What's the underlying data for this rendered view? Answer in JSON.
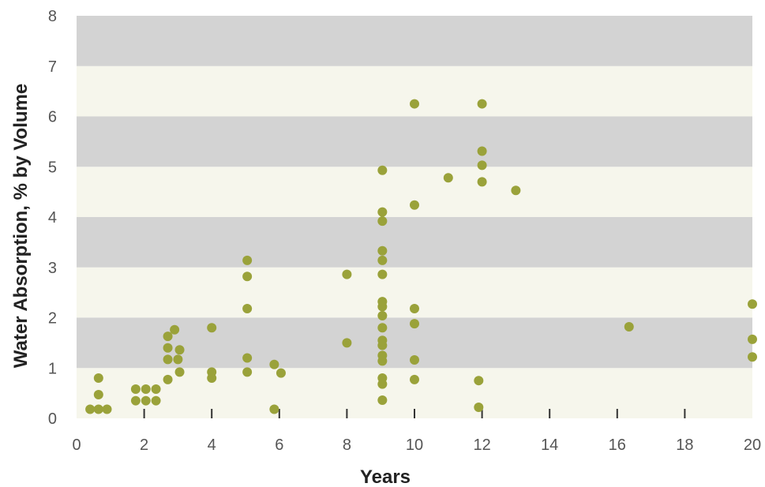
{
  "chart_data": {
    "type": "scatter",
    "xlabel": "Years",
    "ylabel": "Water  Absorption, % by Volume",
    "xlim": [
      0,
      20
    ],
    "ylim": [
      0,
      8
    ],
    "xticks": [
      0,
      2,
      4,
      6,
      8,
      10,
      12,
      14,
      16,
      18,
      20
    ],
    "yticks": [
      0,
      1,
      2,
      3,
      4,
      5,
      6,
      7,
      8
    ],
    "grid": "alternating horizontal bands",
    "legend": "none",
    "colors": {
      "point": "#9aa23a",
      "band_dark": "#d3d3d3",
      "band_light": "#f6f6ec",
      "tick": "#333333"
    },
    "points": [
      {
        "x": 0.4,
        "y": 0.18
      },
      {
        "x": 0.65,
        "y": 0.18
      },
      {
        "x": 0.9,
        "y": 0.18
      },
      {
        "x": 0.65,
        "y": 0.47
      },
      {
        "x": 0.65,
        "y": 0.8
      },
      {
        "x": 1.75,
        "y": 0.35
      },
      {
        "x": 2.05,
        "y": 0.35
      },
      {
        "x": 2.35,
        "y": 0.35
      },
      {
        "x": 1.75,
        "y": 0.58
      },
      {
        "x": 2.05,
        "y": 0.58
      },
      {
        "x": 2.35,
        "y": 0.58
      },
      {
        "x": 2.7,
        "y": 0.77
      },
      {
        "x": 2.7,
        "y": 1.17
      },
      {
        "x": 2.7,
        "y": 1.4
      },
      {
        "x": 2.7,
        "y": 1.63
      },
      {
        "x": 2.9,
        "y": 1.76
      },
      {
        "x": 3.0,
        "y": 1.17
      },
      {
        "x": 3.05,
        "y": 0.92
      },
      {
        "x": 3.05,
        "y": 1.36
      },
      {
        "x": 4.0,
        "y": 0.8
      },
      {
        "x": 4.0,
        "y": 0.92
      },
      {
        "x": 4.0,
        "y": 1.8
      },
      {
        "x": 5.05,
        "y": 0.92
      },
      {
        "x": 5.05,
        "y": 1.2
      },
      {
        "x": 5.05,
        "y": 2.18
      },
      {
        "x": 5.05,
        "y": 2.82
      },
      {
        "x": 5.05,
        "y": 3.14
      },
      {
        "x": 5.85,
        "y": 0.18
      },
      {
        "x": 5.85,
        "y": 1.07
      },
      {
        "x": 6.05,
        "y": 0.9
      },
      {
        "x": 8.0,
        "y": 1.5
      },
      {
        "x": 8.0,
        "y": 2.86
      },
      {
        "x": 9.05,
        "y": 0.36
      },
      {
        "x": 9.05,
        "y": 0.68
      },
      {
        "x": 9.05,
        "y": 0.8
      },
      {
        "x": 9.05,
        "y": 1.14
      },
      {
        "x": 9.05,
        "y": 1.25
      },
      {
        "x": 9.05,
        "y": 1.45
      },
      {
        "x": 9.05,
        "y": 1.55
      },
      {
        "x": 9.05,
        "y": 1.8
      },
      {
        "x": 9.05,
        "y": 2.04
      },
      {
        "x": 9.05,
        "y": 2.22
      },
      {
        "x": 9.05,
        "y": 2.32
      },
      {
        "x": 9.05,
        "y": 2.86
      },
      {
        "x": 9.05,
        "y": 3.14
      },
      {
        "x": 9.05,
        "y": 3.33
      },
      {
        "x": 9.05,
        "y": 3.92
      },
      {
        "x": 9.05,
        "y": 4.1
      },
      {
        "x": 9.05,
        "y": 4.93
      },
      {
        "x": 10.0,
        "y": 0.77
      },
      {
        "x": 10.0,
        "y": 1.16
      },
      {
        "x": 10.0,
        "y": 1.88
      },
      {
        "x": 10.0,
        "y": 2.18
      },
      {
        "x": 10.0,
        "y": 4.24
      },
      {
        "x": 10.0,
        "y": 6.25
      },
      {
        "x": 11.0,
        "y": 4.78
      },
      {
        "x": 11.9,
        "y": 0.22
      },
      {
        "x": 11.9,
        "y": 0.75
      },
      {
        "x": 12.0,
        "y": 4.7
      },
      {
        "x": 12.0,
        "y": 5.03
      },
      {
        "x": 12.0,
        "y": 5.31
      },
      {
        "x": 12.0,
        "y": 6.25
      },
      {
        "x": 13.0,
        "y": 4.53
      },
      {
        "x": 16.35,
        "y": 1.82
      },
      {
        "x": 20.0,
        "y": 1.22
      },
      {
        "x": 20.0,
        "y": 1.57
      },
      {
        "x": 20.0,
        "y": 2.27
      }
    ]
  }
}
